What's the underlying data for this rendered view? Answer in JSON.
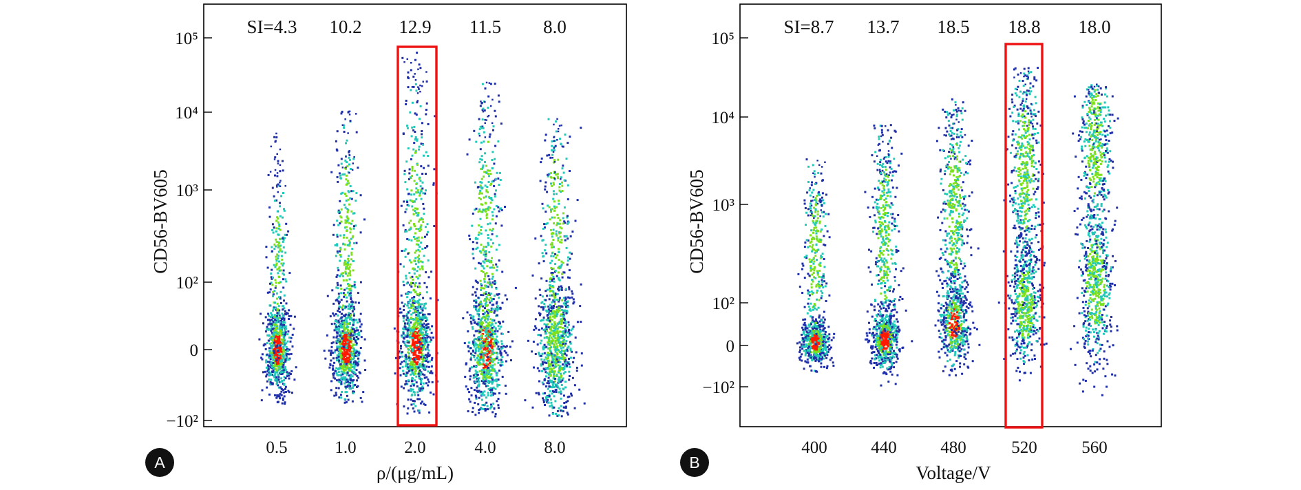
{
  "chart_data": [
    {
      "panel": "A",
      "type": "scatter",
      "xlabel": "ρ/(μg/mL)",
      "ylabel": "CD56-BV605",
      "y_scale": "biexponential (log above 10², linear around 0)",
      "categories": [
        "0.5",
        "1.0",
        "2.0",
        "4.0",
        "8.0"
      ],
      "y_ticks": [
        "10⁵",
        "10⁴",
        "10³",
        "10²",
        "0",
        "−10²"
      ],
      "si_values": [
        "SI=4.3",
        "10.2",
        "12.9",
        "11.5",
        "8.0"
      ],
      "highlighted_category": "2.0",
      "colors": {
        "low": "#1f2fa8",
        "mid": "#22c9b8",
        "high_mid": "#7de01a",
        "peak": "#ff1a00",
        "highlight": "#ee1111"
      }
    },
    {
      "panel": "B",
      "type": "scatter",
      "xlabel": "Voltage/V",
      "ylabel": "CD56-BV605",
      "y_scale": "biexponential (log above 10², linear around 0)",
      "categories": [
        "400",
        "440",
        "480",
        "520",
        "560"
      ],
      "y_ticks": [
        "10⁵",
        "10⁴",
        "10³",
        "10²",
        "0",
        "−10²"
      ],
      "si_values": [
        "SI=8.7",
        "13.7",
        "18.5",
        "18.8",
        "18.0"
      ],
      "highlighted_category": "520",
      "colors": {
        "low": "#1f2fa8",
        "mid": "#22c9b8",
        "high_mid": "#7de01a",
        "peak": "#ff1a00",
        "highlight": "#ee1111"
      }
    }
  ],
  "badges": [
    "A",
    "B"
  ]
}
